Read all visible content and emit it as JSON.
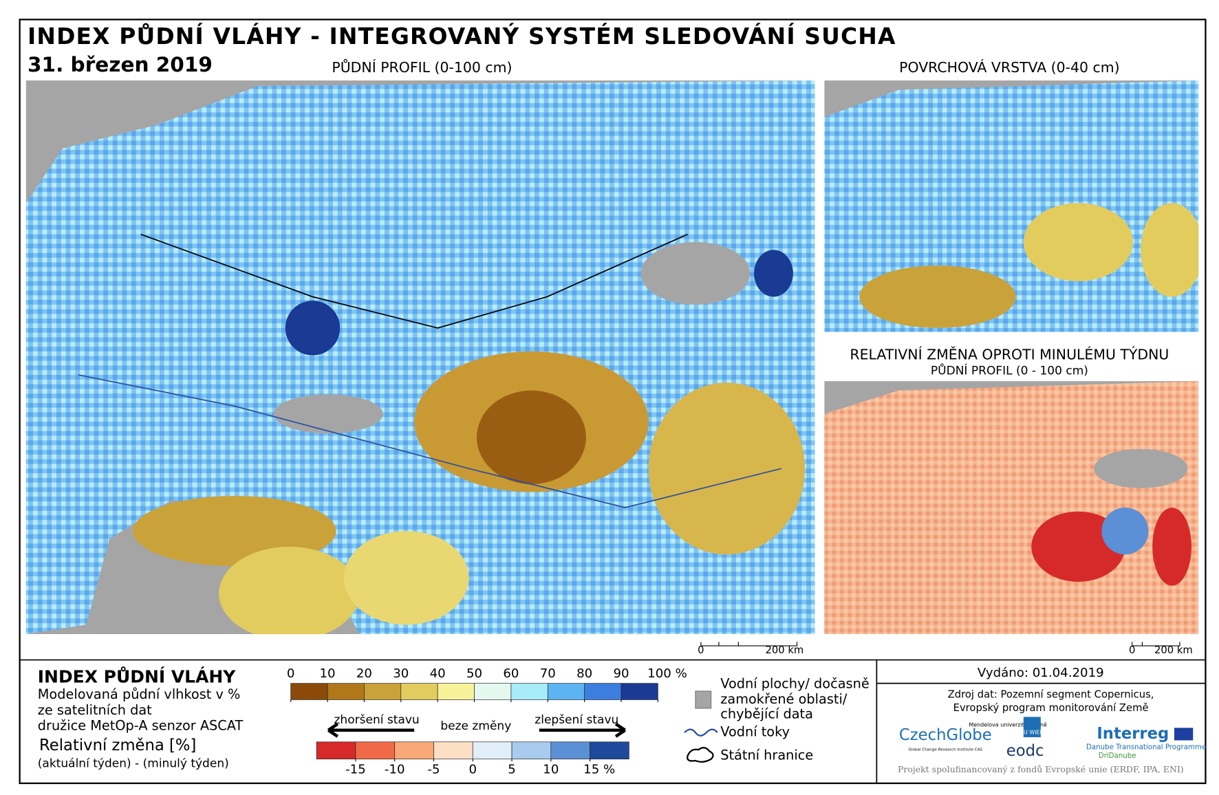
{
  "header": {
    "title": "INDEX PŮDNÍ VLÁHY - INTEGROVANÝ SYSTÉM SLEDOVÁNÍ SUCHA",
    "date": "31. březen 2019"
  },
  "maps": {
    "main": {
      "title": "PŮDNÍ PROFIL (0-100 cm)",
      "scale_start": "0",
      "scale_end": "200 km"
    },
    "surface": {
      "title": "POVRCHOVÁ VRSTVA (0-40 cm)"
    },
    "change": {
      "title": "RELATIVNÍ ZMĚNA OPROTI MINULÉMU TÝDNU",
      "subtitle": "PŮDNÍ PROFIL (0 - 100 cm)",
      "scale_start": "0",
      "scale_end": "200 km"
    }
  },
  "legend": {
    "title": "INDEX PŮDNÍ VLÁHY",
    "description": [
      "Modelovaná půdní vlhkost v %",
      "ze satelitních dat",
      "družice MetOp-A senzor ASCAT"
    ],
    "index_scale": {
      "ticks": [
        0,
        10,
        20,
        30,
        40,
        50,
        60,
        70,
        80,
        90,
        {
          "value": 100,
          "label": "100 %"
        }
      ],
      "colors": [
        "#8b4a08",
        "#b07818",
        "#c9a23a",
        "#e2cc5e",
        "#f7f29a",
        "#e4f8f0",
        "#a8ecfa",
        "#5cb4f2",
        "#3c7ee0",
        "#1a3a94"
      ]
    },
    "change_title": "Relativní změna [%]",
    "change_subtitle": "(aktuální týden) - (minulý týden)",
    "worse": "zhoršení stavu",
    "same": "beze změny",
    "better": "zlepšení stavu",
    "change_scale": {
      "ticks": [
        -15,
        -10,
        -5,
        0,
        5,
        10,
        {
          "value": 15,
          "label": "15 %"
        }
      ],
      "colors": [
        "#d62a2a",
        "#f06a48",
        "#f9a878",
        "#fde0c4",
        "#e2eef8",
        "#a8cbee",
        "#5b8fd6",
        "#1f4a9c"
      ]
    }
  },
  "key": {
    "water": [
      "Vodní plochy/ dočasně",
      "zamokřené oblasti/",
      "chybějící data"
    ],
    "rivers": "Vodní toky",
    "borders": "Státní hranice"
  },
  "info": {
    "issued": "Vydáno: 01.04.2019",
    "source": [
      "Zdroj dat: Pozemní segment Copernicus,",
      "Evropský program monitorování Země"
    ],
    "logos": [
      "CzechGlobe",
      "Global Change Research Institute CAS",
      "Mendelova univerzita v Brně",
      "TU WIEN",
      "eodc",
      "Interreg",
      "Danube Transnational Programme",
      "DriDanube"
    ],
    "footer": "Projekt spolufinancovaný z fondů Evropské unie (ERDF, IPA, ENI)"
  }
}
